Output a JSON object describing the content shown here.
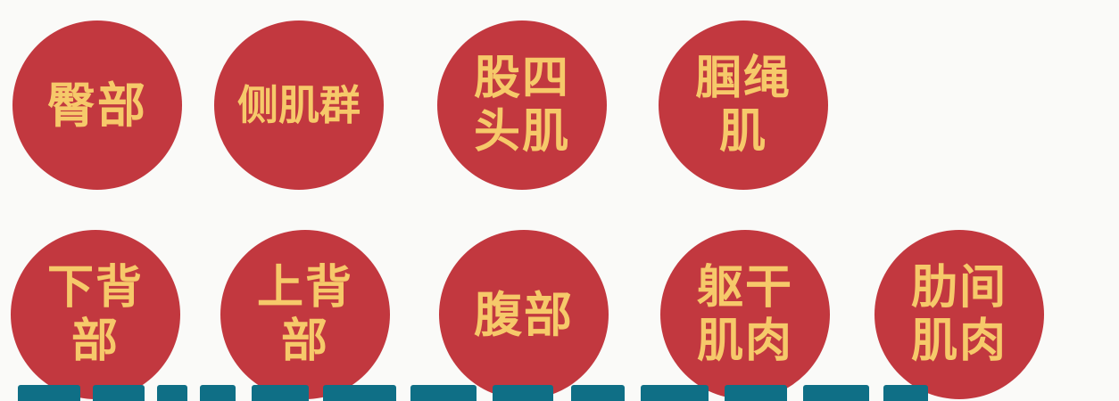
{
  "circles": [
    {
      "lines": [
        "臀部"
      ]
    },
    {
      "lines": [
        "侧肌群"
      ]
    },
    {
      "lines": [
        "股四",
        "头肌"
      ]
    },
    {
      "lines": [
        "腘绳",
        "肌"
      ]
    },
    {
      "lines": [
        "下背",
        "部"
      ]
    },
    {
      "lines": [
        "上背",
        "部"
      ]
    },
    {
      "lines": [
        "腹部"
      ]
    },
    {
      "lines": [
        "躯干",
        "肌肉"
      ]
    },
    {
      "lines": [
        "肋间",
        "肌肉"
      ]
    }
  ],
  "colors": {
    "background": "#fafaf8",
    "circle_fill": "#c2383f",
    "circle_text": "#f6c96a",
    "caption_fragment": "#0f6f86"
  }
}
